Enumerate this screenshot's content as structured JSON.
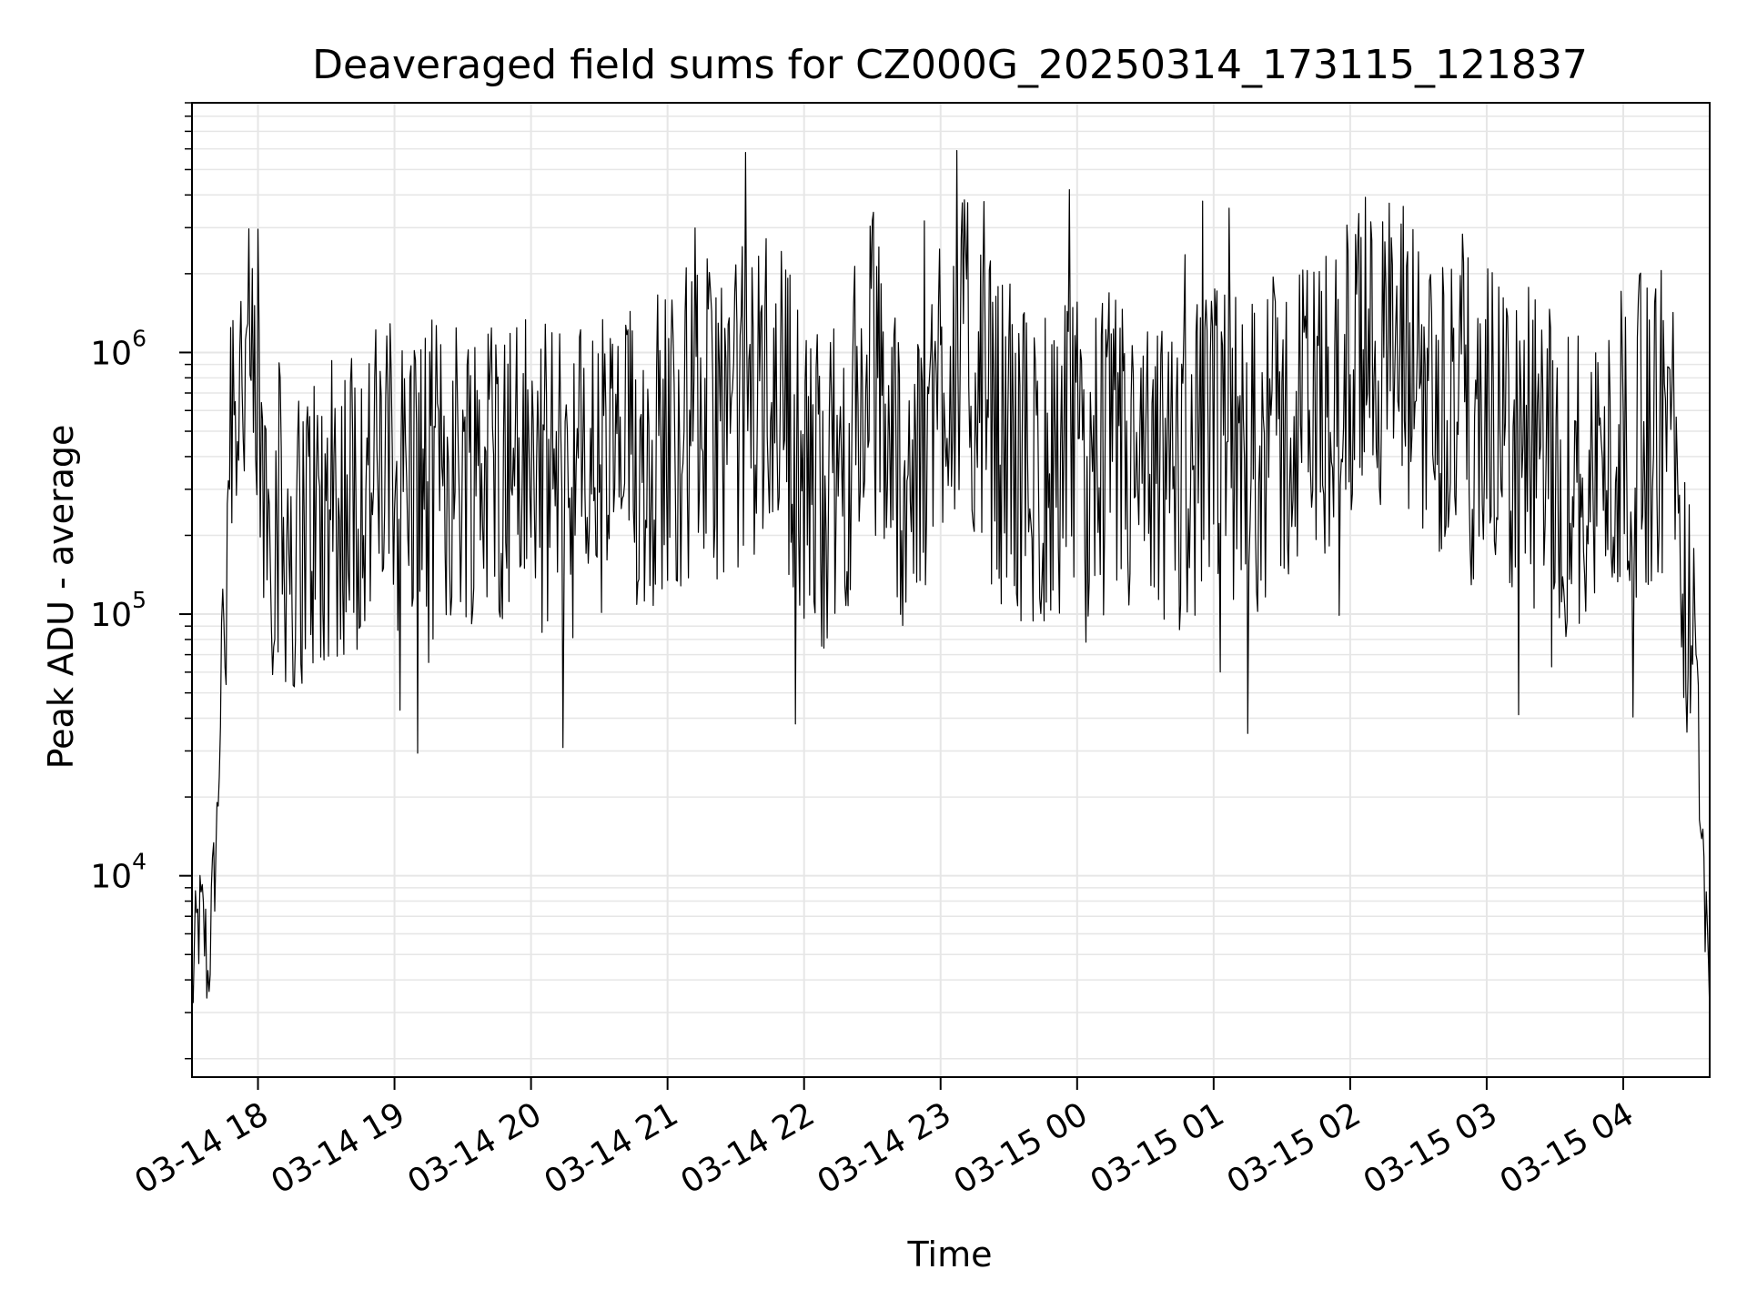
{
  "chart_data": {
    "type": "line",
    "title": "Deaveraged field sums for CZ000G_20250314_173115_121837",
    "xlabel": "Time",
    "ylabel": "Peak ADU - average",
    "x_type": "datetime",
    "x_range": [
      "2025-03-14 17:31",
      "2025-03-15 04:38"
    ],
    "y_scale": "log",
    "ylim": [
      1700,
      9000000
    ],
    "grid": true,
    "grid_minor": true,
    "line_color": "#000000",
    "grid_color": "#e6e6e6",
    "x_ticks": [
      {
        "x": "2025-03-14 18:00",
        "label": "03-14 18"
      },
      {
        "x": "2025-03-14 19:00",
        "label": "03-14 19"
      },
      {
        "x": "2025-03-14 20:00",
        "label": "03-14 20"
      },
      {
        "x": "2025-03-14 21:00",
        "label": "03-14 21"
      },
      {
        "x": "2025-03-14 22:00",
        "label": "03-14 22"
      },
      {
        "x": "2025-03-14 23:00",
        "label": "03-14 23"
      },
      {
        "x": "2025-03-15 00:00",
        "label": "03-15 00"
      },
      {
        "x": "2025-03-15 01:00",
        "label": "03-15 01"
      },
      {
        "x": "2025-03-15 02:00",
        "label": "03-15 02"
      },
      {
        "x": "2025-03-15 03:00",
        "label": "03-15 03"
      },
      {
        "x": "2025-03-15 04:00",
        "label": "03-15 04"
      }
    ],
    "y_ticks": [
      {
        "value": 10000,
        "base": "10",
        "exp": "4"
      },
      {
        "value": 100000,
        "base": "10",
        "exp": "5"
      },
      {
        "value": 1000000,
        "base": "10",
        "exp": "6"
      }
    ],
    "series": [
      {
        "x": [
          "2025-03-14 17:31",
          "2025-03-14 17:33",
          "2025-03-14 17:35",
          "2025-03-14 17:37",
          "2025-03-14 17:38",
          "2025-03-14 17:40",
          "2025-03-14 17:42",
          "2025-03-14 17:45",
          "2025-03-14 17:48",
          "2025-03-14 17:52",
          "2025-03-14 17:55",
          "2025-03-14 18:00",
          "2025-03-14 18:05",
          "2025-03-14 18:15",
          "2025-03-14 18:30",
          "2025-03-14 18:45",
          "2025-03-14 19:00",
          "2025-03-14 19:15",
          "2025-03-14 19:30",
          "2025-03-14 19:45",
          "2025-03-14 20:00",
          "2025-03-14 20:15",
          "2025-03-14 20:30",
          "2025-03-14 20:45",
          "2025-03-14 21:00",
          "2025-03-14 21:15",
          "2025-03-14 21:30",
          "2025-03-14 21:40",
          "2025-03-14 21:50",
          "2025-03-14 22:00",
          "2025-03-14 22:15",
          "2025-03-14 22:30",
          "2025-03-14 22:40",
          "2025-03-14 22:50",
          "2025-03-14 23:00",
          "2025-03-14 23:10",
          "2025-03-14 23:20",
          "2025-03-14 23:30",
          "2025-03-14 23:45",
          "2025-03-15 00:00",
          "2025-03-15 00:15",
          "2025-03-15 00:30",
          "2025-03-15 00:45",
          "2025-03-15 01:00",
          "2025-03-15 01:15",
          "2025-03-15 01:30",
          "2025-03-15 01:45",
          "2025-03-15 02:00",
          "2025-03-15 02:10",
          "2025-03-15 02:20",
          "2025-03-15 02:30",
          "2025-03-15 02:45",
          "2025-03-15 03:00",
          "2025-03-15 03:15",
          "2025-03-15 03:30",
          "2025-03-15 03:45",
          "2025-03-15 04:00",
          "2025-03-15 04:10",
          "2025-03-15 04:20",
          "2025-03-15 04:28",
          "2025-03-15 04:32",
          "2025-03-15 04:35",
          "2025-03-15 04:37",
          "2025-03-15 04:38"
        ],
        "y": [
          3500,
          6000,
          7000,
          5500,
          4000,
          8000,
          15000,
          120000,
          700000,
          900000,
          800000,
          450000,
          250000,
          200000,
          250000,
          300000,
          350000,
          320000,
          380000,
          400000,
          350000,
          330000,
          350000,
          380000,
          500000,
          550000,
          600000,
          700000,
          800000,
          300000,
          320000,
          900000,
          400000,
          300000,
          900000,
          1000000,
          600000,
          400000,
          350000,
          400000,
          420000,
          300000,
          350000,
          450000,
          400000,
          500000,
          600000,
          800000,
          1200000,
          900000,
          800000,
          600000,
          500000,
          450000,
          350000,
          300000,
          450000,
          500000,
          600000,
          120000,
          60000,
          12000,
          6000,
          3000
        ]
      }
    ]
  }
}
